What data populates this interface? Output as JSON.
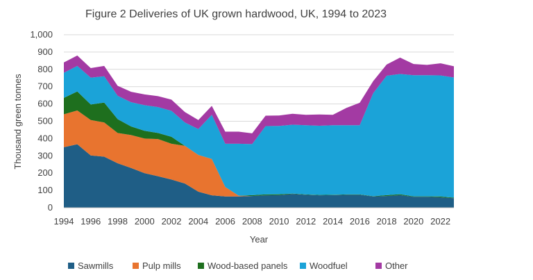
{
  "chart_data": {
    "type": "area",
    "stacked": true,
    "title": "Figure 2 Deliveries of UK grown hardwood, UK, 1994 to 2023",
    "xlabel": "Year",
    "ylabel": "Thousand green tonnes",
    "ylim": [
      0,
      1000
    ],
    "xlim": [
      1994,
      2023
    ],
    "grid": true,
    "legend_position": "bottom",
    "x": [
      1994,
      1995,
      1996,
      1997,
      1998,
      1999,
      2000,
      2001,
      2002,
      2003,
      2004,
      2005,
      2006,
      2007,
      2008,
      2009,
      2010,
      2011,
      2012,
      2013,
      2014,
      2015,
      2016,
      2017,
      2018,
      2019,
      2020,
      2021,
      2022,
      2023
    ],
    "x_ticks": [
      1994,
      1996,
      1998,
      2000,
      2002,
      2004,
      2006,
      2008,
      2010,
      2012,
      2014,
      2016,
      2018,
      2020,
      2022
    ],
    "x_tick_labels": [
      "1994",
      "1996",
      "1998",
      "2000",
      "2002",
      "2004",
      "2006",
      "2008",
      "2010",
      "2012",
      "2014",
      "2016",
      "2018",
      "2020",
      "2022"
    ],
    "y_ticks": [
      0,
      100,
      200,
      300,
      400,
      500,
      600,
      700,
      800,
      900,
      1000
    ],
    "y_tick_labels": [
      "0",
      "100",
      "200",
      "300",
      "400",
      "500",
      "600",
      "700",
      "800",
      "900",
      "1,000"
    ],
    "series": [
      {
        "name": "Sawmills",
        "color": "#1f5e86",
        "values": [
          350,
          367,
          302,
          295,
          257,
          230,
          200,
          182,
          163,
          140,
          93,
          72,
          65,
          65,
          68,
          72,
          73,
          80,
          75,
          72,
          73,
          75,
          75,
          65,
          68,
          73,
          63,
          63,
          60,
          55
        ]
      },
      {
        "name": "Pulp mills",
        "color": "#e8742f",
        "values": [
          190,
          195,
          205,
          198,
          175,
          190,
          200,
          215,
          207,
          218,
          212,
          210,
          55,
          5,
          0,
          0,
          0,
          0,
          0,
          0,
          0,
          0,
          0,
          0,
          0,
          0,
          0,
          0,
          0,
          0
        ]
      },
      {
        "name": "Wood-based panels",
        "color": "#1e6f1e",
        "values": [
          95,
          110,
          90,
          115,
          80,
          50,
          45,
          35,
          40,
          0,
          0,
          0,
          0,
          0,
          5,
          5,
          5,
          2,
          2,
          2,
          2,
          2,
          2,
          2,
          5,
          5,
          3,
          3,
          5,
          3
        ]
      },
      {
        "name": "Woodfuel",
        "color": "#1ba3d8",
        "values": [
          145,
          148,
          155,
          152,
          135,
          140,
          148,
          150,
          150,
          135,
          150,
          255,
          250,
          300,
          295,
          395,
          395,
          398,
          400,
          400,
          402,
          400,
          400,
          595,
          690,
          695,
          700,
          700,
          700,
          695
        ]
      },
      {
        "name": "Other",
        "color": "#a33aa3",
        "values": [
          60,
          60,
          55,
          60,
          58,
          60,
          62,
          63,
          65,
          60,
          52,
          52,
          70,
          70,
          62,
          60,
          60,
          63,
          60,
          65,
          60,
          100,
          130,
          70,
          65,
          95,
          65,
          60,
          70,
          65
        ]
      }
    ]
  }
}
